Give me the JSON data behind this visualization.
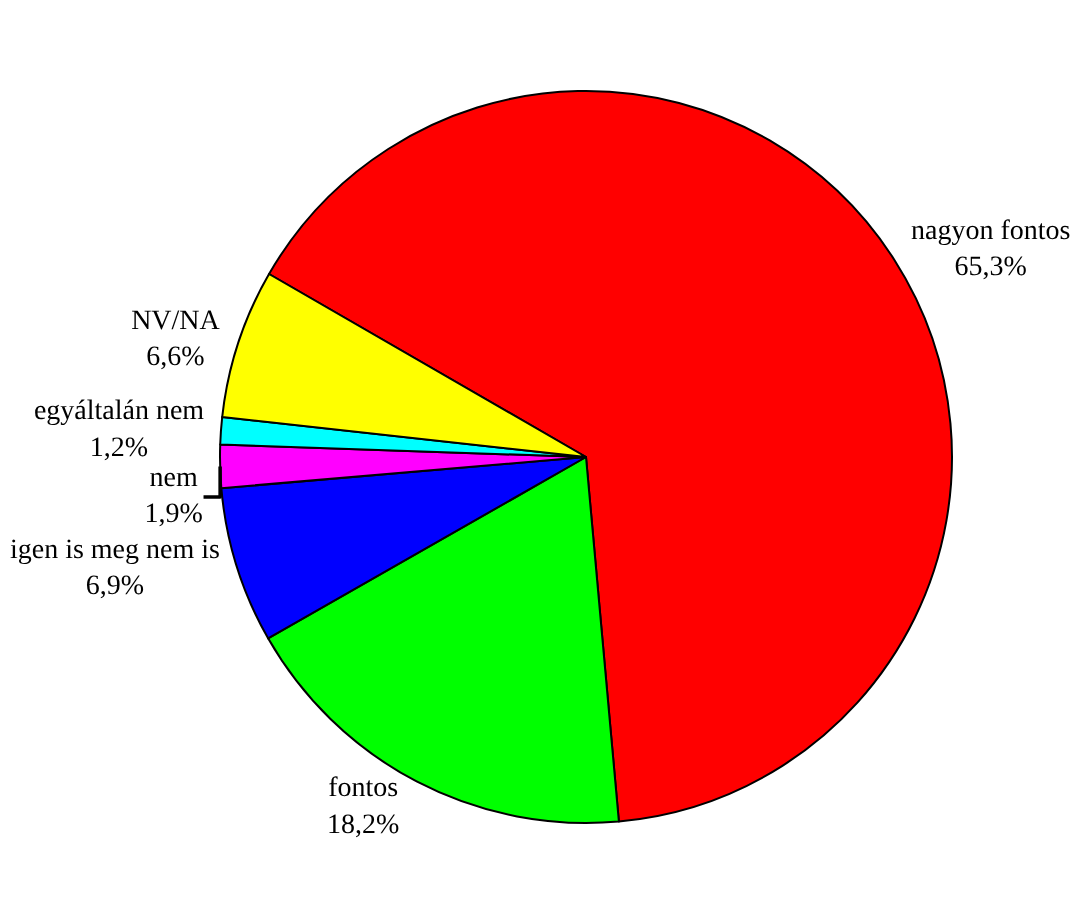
{
  "chart_data": {
    "type": "pie",
    "categories": [
      "nagyon fontos",
      "fontos",
      "igen is meg nem is",
      "nem",
      "egyáltalán nem",
      "NV/NA"
    ],
    "values": [
      65.3,
      18.2,
      6.9,
      1.9,
      1.2,
      6.6
    ],
    "value_labels": [
      "65,3%",
      "18,2%",
      "6,9%",
      "1,9%",
      "1,2%",
      "6,6%"
    ],
    "colors": [
      "#ff0000",
      "#00ff00",
      "#0000ff",
      "#ff00ff",
      "#00ffff",
      "#ffff00"
    ],
    "legend": false
  }
}
